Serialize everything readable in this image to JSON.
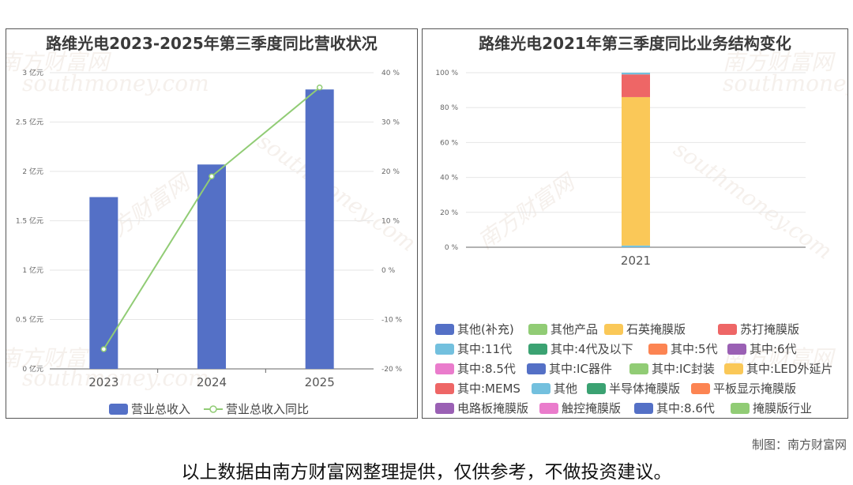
{
  "left_chart": {
    "title": "路维光电2023-2025年第三季度同比营收状况",
    "chart_data": {
      "type": "bar",
      "categories": [
        "2023",
        "2024",
        "2025"
      ],
      "series": [
        {
          "name": "营业总收入",
          "type": "bar",
          "axis": "left",
          "values": [
            1.74,
            2.07,
            2.83
          ],
          "color": "#5470c6"
        },
        {
          "name": "营业总收入同比",
          "type": "line",
          "axis": "right",
          "values": [
            -16,
            19,
            37
          ],
          "color": "#91cc75"
        }
      ],
      "y_left": {
        "ticks": [
          "0 亿元",
          "0.5 亿元",
          "1 亿元",
          "1.5 亿元",
          "2 亿元",
          "2.5 亿元",
          "3 亿元"
        ],
        "range": [
          0,
          3
        ]
      },
      "y_right": {
        "ticks": [
          "-20 %",
          "-10 %",
          "0 %",
          "10 %",
          "20 %",
          "30 %",
          "40 %"
        ],
        "range": [
          -20,
          40
        ]
      },
      "legend": [
        "营业总收入",
        "营业总收入同比"
      ],
      "grid": true,
      "legend_position": "bottom"
    }
  },
  "right_chart": {
    "title": "路维光电2021年第三季度同比业务结构变化",
    "chart_data": {
      "type": "bar",
      "stacked": true,
      "categories": [
        "2021"
      ],
      "y_ticks": [
        "0 %",
        "20 %",
        "40 %",
        "60 %",
        "80 %",
        "100 %"
      ],
      "ylim": [
        0,
        100
      ],
      "series": [
        {
          "name": "其他(补充)",
          "values": [
            0
          ],
          "color": "#5470c6"
        },
        {
          "name": "其他产品",
          "values": [
            0
          ],
          "color": "#91cc75"
        },
        {
          "name": "石英掩膜版",
          "values": [
            85
          ],
          "color": "#fac858"
        },
        {
          "name": "苏打掩膜版",
          "values": [
            13
          ],
          "color": "#ee6666"
        },
        {
          "name": "其中:11代",
          "values": [
            1
          ],
          "color": "#73c0de"
        },
        {
          "name": "其中:4代及以下",
          "values": [
            0
          ],
          "color": "#3ba272"
        },
        {
          "name": "其中:5代",
          "values": [
            0
          ],
          "color": "#fc8452"
        },
        {
          "name": "其中:6代",
          "values": [
            0
          ],
          "color": "#9a60b4"
        },
        {
          "name": "其中:8.5代",
          "values": [
            0
          ],
          "color": "#ea7ccc"
        },
        {
          "name": "其中:IC器件",
          "values": [
            0
          ],
          "color": "#5470c6"
        },
        {
          "name": "其中:IC封装",
          "values": [
            0
          ],
          "color": "#91cc75"
        },
        {
          "name": "其中:LED外延片",
          "values": [
            0
          ],
          "color": "#fac858"
        },
        {
          "name": "其中:MEMS",
          "values": [
            0
          ],
          "color": "#ee6666"
        },
        {
          "name": "其他",
          "values": [
            1
          ],
          "color": "#73c0de"
        },
        {
          "name": "半导体掩膜版",
          "values": [
            0
          ],
          "color": "#3ba272"
        },
        {
          "name": "平板显示掩膜版",
          "values": [
            0
          ],
          "color": "#fc8452"
        },
        {
          "name": "电路板掩膜版",
          "values": [
            0
          ],
          "color": "#9a60b4"
        },
        {
          "name": "触控掩膜版",
          "values": [
            0
          ],
          "color": "#ea7ccc"
        },
        {
          "name": "其中:8.6代",
          "values": [
            0
          ],
          "color": "#5470c6"
        },
        {
          "name": "掩膜版行业",
          "values": [
            0
          ],
          "color": "#91cc75"
        }
      ],
      "stack_order_bottom_to_top": [
        "其他",
        "石英掩膜版",
        "苏打掩膜版",
        "其中:11代"
      ],
      "grid": true,
      "legend_position": "bottom"
    }
  },
  "watermark": {
    "cn": "南方财富网",
    "en": "southmoney.com"
  },
  "footer": {
    "credit": "制图：南方财富网",
    "note": "以上数据由南方财富网整理提供，仅供参考，不做投资建议。"
  }
}
